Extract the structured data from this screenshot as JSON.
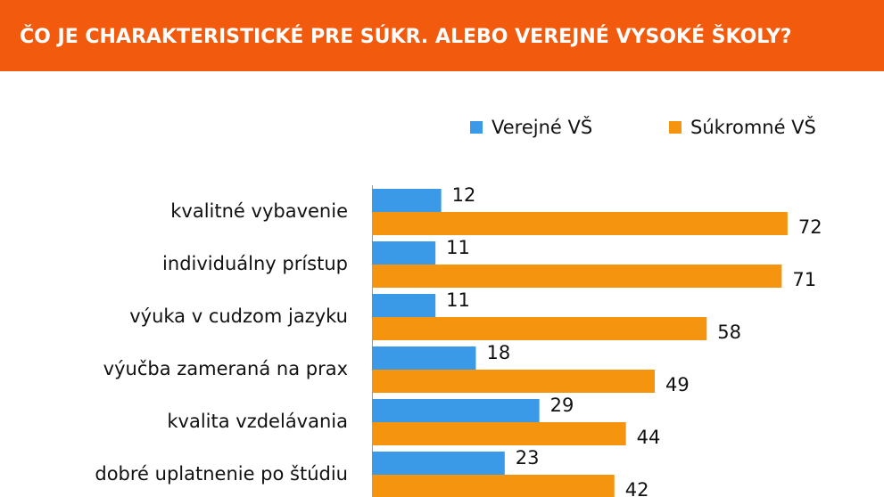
{
  "chart_data": {
    "type": "bar",
    "orientation": "horizontal",
    "title": "ČO JE CHARAKTERISTICKÉ PRE SÚKR. ALEBO VEREJNÉ VYSOKÉ ŠKOLY?",
    "categories": [
      "kvalitné vybavenie",
      "individuálny prístup",
      "výuka v cudzom jazyku",
      "výučba zameraná na prax",
      "kvalita vzdelávania",
      "dobré uplatnenie po štúdiu"
    ],
    "series": [
      {
        "name": "Verejné VŠ",
        "color": "#3b9ae8",
        "values": [
          12,
          11,
          11,
          18,
          29,
          23
        ]
      },
      {
        "name": "Súkromné VŠ",
        "color": "#f5940f",
        "values": [
          72,
          71,
          58,
          49,
          44,
          42
        ]
      }
    ],
    "legend": "top-right",
    "title_background": "#f25a0e"
  }
}
